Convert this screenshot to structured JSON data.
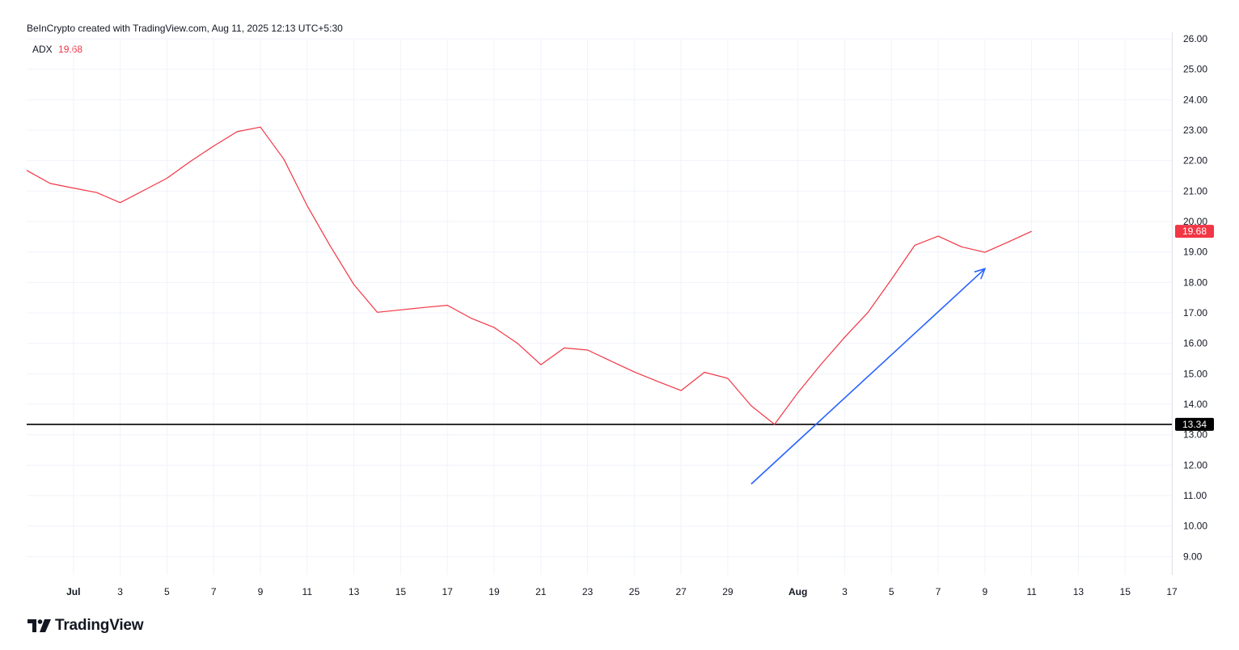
{
  "header": {
    "credit": "BeInCrypto created with TradingView.com, Aug 11, 2025 12:13 UTC+5:30"
  },
  "legend": {
    "indicator": "ADX",
    "value": "19.68"
  },
  "branding": {
    "logo_text": "TradingView"
  },
  "colors": {
    "series": "#f23645",
    "badge_series": "#f23645",
    "support_line": "#000000",
    "arrow": "#2962ff",
    "grid": "#f0f3fa"
  },
  "chart_data": {
    "type": "line",
    "x_ticks": [
      {
        "date": "2025-07-01",
        "label": "Jul",
        "bold": true
      },
      {
        "date": "2025-07-03",
        "label": "3"
      },
      {
        "date": "2025-07-05",
        "label": "5"
      },
      {
        "date": "2025-07-07",
        "label": "7"
      },
      {
        "date": "2025-07-09",
        "label": "9"
      },
      {
        "date": "2025-07-11",
        "label": "11"
      },
      {
        "date": "2025-07-13",
        "label": "13"
      },
      {
        "date": "2025-07-15",
        "label": "15"
      },
      {
        "date": "2025-07-17",
        "label": "17"
      },
      {
        "date": "2025-07-19",
        "label": "19"
      },
      {
        "date": "2025-07-21",
        "label": "21"
      },
      {
        "date": "2025-07-23",
        "label": "23"
      },
      {
        "date": "2025-07-25",
        "label": "25"
      },
      {
        "date": "2025-07-27",
        "label": "27"
      },
      {
        "date": "2025-07-29",
        "label": "29"
      },
      {
        "date": "2025-08-01",
        "label": "Aug",
        "bold": true
      },
      {
        "date": "2025-08-03",
        "label": "3"
      },
      {
        "date": "2025-08-05",
        "label": "5"
      },
      {
        "date": "2025-08-07",
        "label": "7"
      },
      {
        "date": "2025-08-09",
        "label": "9"
      },
      {
        "date": "2025-08-11",
        "label": "11"
      },
      {
        "date": "2025-08-13",
        "label": "13"
      },
      {
        "date": "2025-08-15",
        "label": "15"
      },
      {
        "date": "2025-08-17",
        "label": "17"
      }
    ],
    "y_ticks": [
      "9.00",
      "10.00",
      "11.00",
      "12.00",
      "13.00",
      "14.00",
      "15.00",
      "16.00",
      "17.00",
      "18.00",
      "19.00",
      "20.00",
      "21.00",
      "22.00",
      "23.00",
      "24.00",
      "25.00",
      "26.00"
    ],
    "xlim": [
      "2025-06-29",
      "2025-08-17"
    ],
    "ylim": [
      8.4,
      26.0
    ],
    "grid": true,
    "series": [
      {
        "name": "ADX",
        "points": [
          [
            "2025-06-29",
            21.68
          ],
          [
            "2025-06-30",
            21.25
          ],
          [
            "2025-07-01",
            21.1
          ],
          [
            "2025-07-02",
            20.95
          ],
          [
            "2025-07-03",
            20.62
          ],
          [
            "2025-07-04",
            21.02
          ],
          [
            "2025-07-05",
            21.42
          ],
          [
            "2025-07-06",
            21.97
          ],
          [
            "2025-07-07",
            22.48
          ],
          [
            "2025-07-08",
            22.95
          ],
          [
            "2025-07-09",
            23.1
          ],
          [
            "2025-07-10",
            22.05
          ],
          [
            "2025-07-11",
            20.52
          ],
          [
            "2025-07-12",
            19.18
          ],
          [
            "2025-07-13",
            17.93
          ],
          [
            "2025-07-14",
            17.02
          ],
          [
            "2025-07-15",
            17.1
          ],
          [
            "2025-07-16",
            17.18
          ],
          [
            "2025-07-17",
            17.25
          ],
          [
            "2025-07-18",
            16.83
          ],
          [
            "2025-07-19",
            16.52
          ],
          [
            "2025-07-20",
            16.0
          ],
          [
            "2025-07-21",
            15.3
          ],
          [
            "2025-07-22",
            15.85
          ],
          [
            "2025-07-23",
            15.78
          ],
          [
            "2025-07-24",
            15.42
          ],
          [
            "2025-07-25",
            15.06
          ],
          [
            "2025-07-26",
            14.75
          ],
          [
            "2025-07-27",
            14.45
          ],
          [
            "2025-07-28",
            15.05
          ],
          [
            "2025-07-29",
            14.85
          ],
          [
            "2025-07-30",
            13.95
          ],
          [
            "2025-07-31",
            13.34
          ],
          [
            "2025-08-01",
            14.38
          ],
          [
            "2025-08-02",
            15.32
          ],
          [
            "2025-08-03",
            16.2
          ],
          [
            "2025-08-04",
            17.02
          ],
          [
            "2025-08-05",
            18.1
          ],
          [
            "2025-08-06",
            19.22
          ],
          [
            "2025-08-07",
            19.52
          ],
          [
            "2025-08-08",
            19.17
          ],
          [
            "2025-08-09",
            18.99
          ],
          [
            "2025-08-10",
            19.33
          ],
          [
            "2025-08-11",
            19.68
          ]
        ]
      }
    ],
    "last_value_badge": "19.68",
    "support_level": {
      "value": 13.34,
      "label": "13.34"
    },
    "annotations": [
      {
        "type": "arrow",
        "from": [
          "2025-07-30",
          11.38
        ],
        "to": [
          "2025-08-09",
          18.45
        ]
      }
    ]
  }
}
